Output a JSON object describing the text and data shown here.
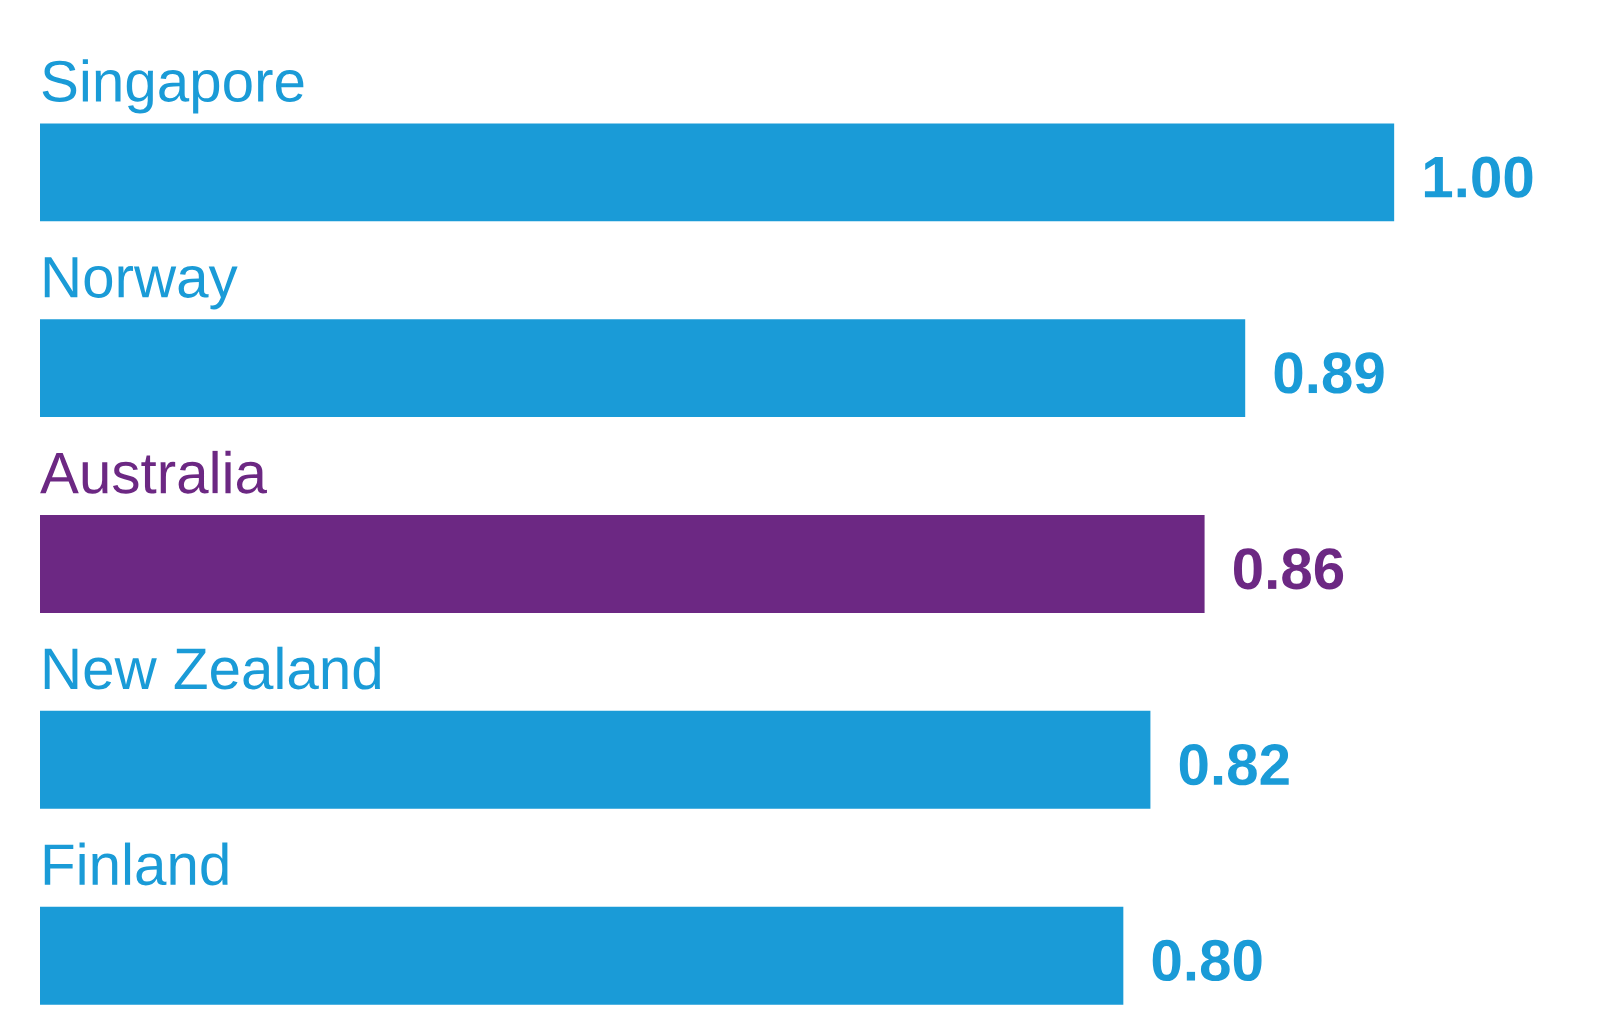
{
  "chart_data": {
    "type": "bar",
    "orientation": "horizontal",
    "categories": [
      "Singapore",
      "Norway",
      "Australia",
      "New Zealand",
      "Finland"
    ],
    "values": [
      1.0,
      0.89,
      0.86,
      0.82,
      0.8
    ],
    "value_labels": [
      "1.00",
      "0.89",
      "0.86",
      "0.82",
      "0.80"
    ],
    "colors": [
      "#1a9bd7",
      "#1a9bd7",
      "#6c2883",
      "#1a9bd7",
      "#1a9bd7"
    ]
  }
}
